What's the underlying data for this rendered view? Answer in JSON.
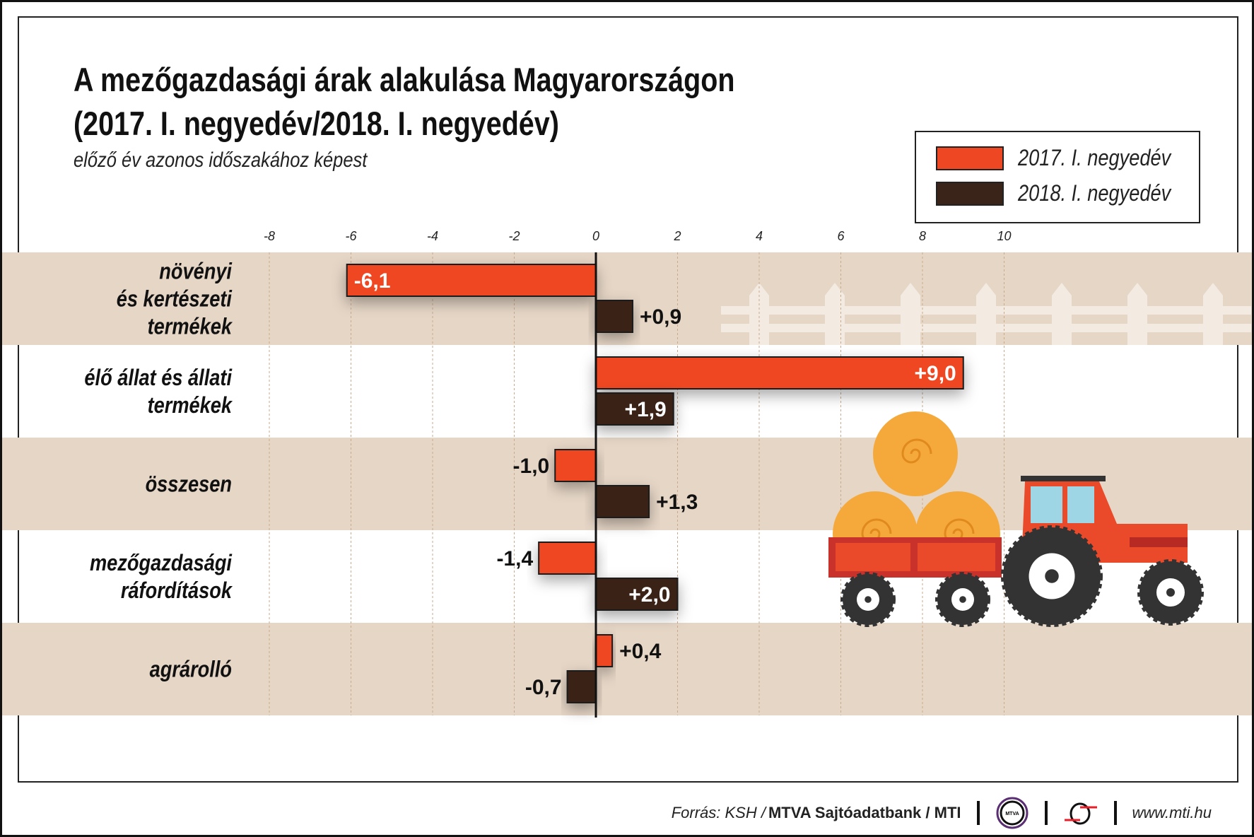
{
  "title_lines": [
    "A mezőgazdasági árak alakulása Magyarországon",
    "(2017. I. negyedév/2018. I. negyedév)"
  ],
  "subtitle": "előző év azonos időszakához képest",
  "legend": [
    {
      "label": "2017. I. negyedév",
      "color": "#ee4723"
    },
    {
      "label": "2018. I. negyedév",
      "color": "#3a2419"
    }
  ],
  "footer": {
    "source_prefix": "Forrás: KSH / ",
    "source_bold": "MTVA Sajtóadatbank / MTI",
    "mtva_logo_text": "MTVA",
    "url": "www.mti.hu"
  },
  "chart_data": {
    "type": "bar",
    "orientation": "horizontal",
    "title": "A mezőgazdasági árak alakulása Magyarországon (2017. I. negyedév/2018. I. negyedév)",
    "xlim": [
      -8,
      10
    ],
    "xticks": [
      -8,
      -6,
      -4,
      -2,
      0,
      2,
      4,
      6,
      8,
      10
    ],
    "xtick_labels": [
      "-8",
      "-6",
      "-4",
      "-2",
      "0",
      "2",
      "4",
      "6",
      "8",
      "10"
    ],
    "categories": [
      [
        "növényi",
        "és kertészeti",
        "termékek"
      ],
      [
        "élő állat és állati",
        "termékek"
      ],
      [
        "összesen"
      ],
      [
        "mezőgazdasági",
        "ráfordítások"
      ],
      [
        "agrárolló"
      ]
    ],
    "series": [
      {
        "name": "2017. I. negyedév",
        "color": "#ee4723",
        "values": [
          -6.1,
          9.0,
          -1.0,
          -1.4,
          0.4
        ],
        "labels": [
          "-6,1",
          "+9,0",
          "-1,0",
          "-1,4",
          "+0,4"
        ]
      },
      {
        "name": "2018. I. negyedév",
        "color": "#3a2419",
        "values": [
          0.9,
          1.9,
          1.3,
          2.0,
          -0.7
        ],
        "labels": [
          "+0,9",
          "+1,9",
          "+1,3",
          "+2,0",
          "-0,7"
        ]
      }
    ],
    "legend_position": "top-right",
    "grid": true
  }
}
